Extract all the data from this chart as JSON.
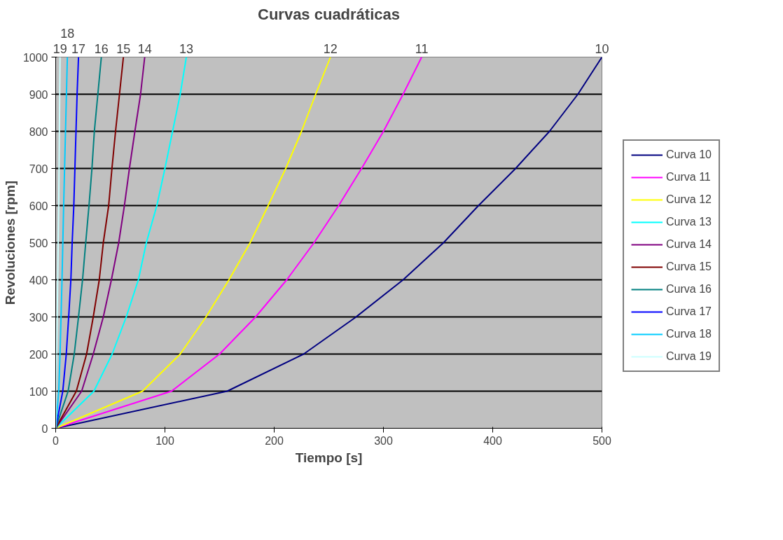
{
  "chart_data": {
    "type": "line",
    "title": "Curvas cuadráticas",
    "xlabel": "Tiempo [s]",
    "ylabel": "Revoluciones [rpm]",
    "xlim": [
      0,
      500
    ],
    "ylim": [
      0,
      1000
    ],
    "xticks": [
      0,
      100,
      200,
      300,
      400,
      500
    ],
    "yticks": [
      0,
      100,
      200,
      300,
      400,
      500,
      600,
      700,
      800,
      900,
      1000
    ],
    "grid": "y",
    "legend": "right",
    "marker": "none",
    "line_style": "solid",
    "series": [
      {
        "name": "Curva 10",
        "color": "#000080",
        "x": [
          0,
          157,
          227,
          275,
          318,
          355,
          387,
          421,
          452,
          478,
          500
        ],
        "values": [
          0,
          100,
          200,
          300,
          400,
          500,
          600,
          700,
          800,
          900,
          1000
        ]
      },
      {
        "name": "Curva 11",
        "color": "#ff00ff",
        "x": [
          0,
          106,
          150,
          183,
          211.5,
          236.5,
          259,
          280,
          300,
          318,
          335
        ],
        "values": [
          0,
          100,
          200,
          300,
          400,
          500,
          600,
          700,
          800,
          900,
          1000
        ]
      },
      {
        "name": "Curva 12",
        "color": "#ffff00",
        "x": [
          0,
          79.5,
          114,
          137.6,
          158.6,
          178,
          194.5,
          210.6,
          225,
          238,
          251.5
        ],
        "values": [
          0,
          100,
          200,
          300,
          400,
          500,
          600,
          700,
          800,
          900,
          1000
        ]
      },
      {
        "name": "Curva 13",
        "color": "#00ffff",
        "x": [
          0,
          35,
          51.7,
          64.6,
          75.7,
          83,
          92.6,
          100,
          107,
          114,
          119.6
        ],
        "values": [
          0,
          100,
          200,
          300,
          400,
          500,
          600,
          700,
          800,
          900,
          1000
        ]
      },
      {
        "name": "Curva 14",
        "color": "#800080",
        "x": [
          0,
          23.8,
          34.4,
          43.6,
          51,
          57.7,
          62.9,
          67.5,
          72.5,
          77.7,
          81.5
        ],
        "values": [
          0,
          100,
          200,
          300,
          400,
          500,
          600,
          700,
          800,
          900,
          1000
        ]
      },
      {
        "name": "Curva 15",
        "color": "#800000",
        "x": [
          0,
          18.9,
          28.3,
          34.4,
          39.9,
          43.6,
          48.5,
          51.5,
          54.8,
          58.4,
          62
        ],
        "values": [
          0,
          100,
          200,
          300,
          400,
          500,
          600,
          700,
          800,
          900,
          1000
        ]
      },
      {
        "name": "Curva 16",
        "color": "#008080",
        "x": [
          0,
          11.4,
          17,
          20.9,
          24.6,
          27.5,
          30.5,
          33.2,
          35.4,
          38.6,
          41.8
        ],
        "values": [
          0,
          100,
          200,
          300,
          400,
          500,
          600,
          700,
          800,
          900,
          1000
        ]
      },
      {
        "name": "Curva 17",
        "color": "#0000ff",
        "x": [
          0,
          6.5,
          9.7,
          11.9,
          13.9,
          15.1,
          16.6,
          17.6,
          18.6,
          19.6,
          20.9
        ],
        "values": [
          0,
          100,
          200,
          300,
          400,
          500,
          600,
          700,
          800,
          900,
          1000
        ]
      },
      {
        "name": "Curva 18",
        "color": "#00ccff",
        "x": [
          0,
          2.8,
          4,
          5.8,
          7.3,
          9,
          10.7
        ],
        "values": [
          0,
          100,
          200,
          400,
          600,
          800,
          1000
        ]
      },
      {
        "name": "Curva 19",
        "color": "#ccffff",
        "x": [
          0,
          2.8,
          4
        ],
        "values": [
          0,
          600,
          1000
        ]
      }
    ],
    "annotations": [
      {
        "text": "10",
        "x": 500,
        "y": 1000
      },
      {
        "text": "11",
        "x": 335,
        "y": 1000
      },
      {
        "text": "12",
        "x": 251.5,
        "y": 1000
      },
      {
        "text": "13",
        "x": 119.6,
        "y": 1000
      },
      {
        "text": "14",
        "x": 81.5,
        "y": 1000
      },
      {
        "text": "15",
        "x": 62,
        "y": 1000
      },
      {
        "text": "16",
        "x": 41.8,
        "y": 1000
      },
      {
        "text": "17",
        "x": 20.9,
        "y": 1000
      },
      {
        "text": "18",
        "x": 10.7,
        "y": 1000
      },
      {
        "text": "19",
        "x": 4,
        "y": 1000
      }
    ]
  }
}
